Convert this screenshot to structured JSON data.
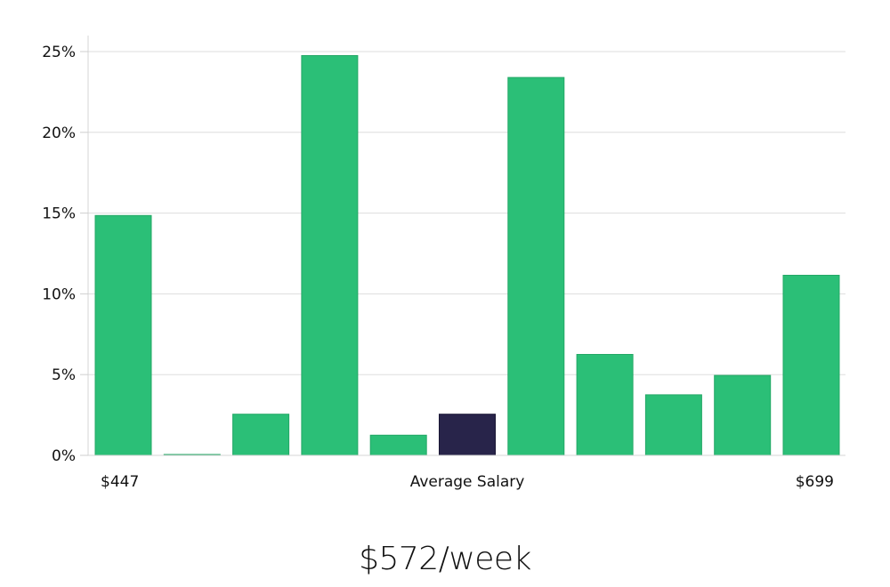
{
  "chart_data": {
    "type": "bar",
    "title": "",
    "xlabel": "Average Salary",
    "ylabel": "",
    "ylim": [
      0,
      26
    ],
    "yticks": [
      "0%",
      "5%",
      "10%",
      "15%",
      "20%",
      "25%"
    ],
    "ytick_values": [
      0,
      5,
      10,
      15,
      20,
      25
    ],
    "grid": true,
    "legend": null,
    "x_range_labels": {
      "left": "$447",
      "center": "Average Salary",
      "right": "$699"
    },
    "categories": [
      "bin1",
      "bin2",
      "bin3",
      "bin4",
      "bin5",
      "bin6",
      "bin7",
      "bin8",
      "bin9",
      "bin10",
      "bin11"
    ],
    "values": [
      14.85,
      0.05,
      2.55,
      24.75,
      1.25,
      2.55,
      23.4,
      6.25,
      3.75,
      4.95,
      11.15
    ],
    "highlight_index": 5,
    "colors": {
      "bar": "#2bbf77",
      "bar_edge": "#23a866",
      "highlight": "#28244a",
      "highlight_edge": "#1a1735",
      "grid": "#dddddd",
      "axis": "#cccccc"
    }
  },
  "footer": {
    "salary_label": "$572/week"
  }
}
